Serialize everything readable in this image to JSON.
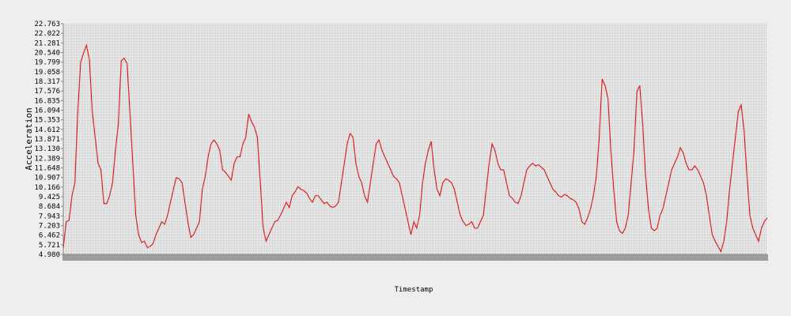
{
  "chart_data": {
    "type": "line",
    "title": "",
    "xlabel": "Timestamp",
    "ylabel": "Acceleration",
    "y_ticks": [
      "4.980",
      "5.721",
      "6.462",
      "7.203",
      "7.943",
      "8.684",
      "9.425",
      "10.166",
      "10.907",
      "11.648",
      "12.389",
      "13.130",
      "13.871",
      "14.612",
      "15.353",
      "16.094",
      "16.835",
      "17.576",
      "18.317",
      "19.058",
      "19.799",
      "20.540",
      "21.281",
      "22.022",
      "22.763"
    ],
    "ylim": [
      4.98,
      22.763
    ],
    "grid": true,
    "series": [
      {
        "name": "",
        "color": "#dd2222",
        "x_range": [
          0,
          1000
        ],
        "y": [
          5.5,
          7.5,
          7.6,
          9.5,
          10.5,
          16.0,
          19.8,
          20.5,
          21.1,
          20.0,
          16.0,
          14.0,
          12.0,
          11.5,
          8.9,
          8.9,
          9.5,
          10.5,
          13.0,
          15.0,
          19.9,
          20.1,
          19.7,
          16.0,
          12.0,
          8.0,
          6.5,
          5.9,
          6.0,
          5.5,
          5.6,
          5.8,
          6.5,
          7.0,
          7.5,
          7.3,
          8.0,
          9.0,
          10.0,
          10.9,
          10.8,
          10.5,
          9.0,
          7.5,
          6.3,
          6.5,
          7.0,
          7.5,
          10.0,
          11.0,
          12.5,
          13.5,
          13.8,
          13.5,
          13.0,
          11.5,
          11.3,
          11.0,
          10.7,
          12.0,
          12.5,
          12.5,
          13.5,
          14.0,
          15.8,
          15.2,
          14.8,
          14.0,
          10.5,
          7.0,
          6.0,
          6.5,
          7.0,
          7.5,
          7.6,
          8.0,
          8.5,
          9.0,
          8.6,
          9.5,
          9.8,
          10.2,
          10.0,
          9.9,
          9.7,
          9.3,
          9.0,
          9.5,
          9.5,
          9.2,
          8.9,
          9.0,
          8.7,
          8.6,
          8.7,
          9.0,
          10.5,
          12.0,
          13.5,
          14.3,
          14.0,
          12.0,
          11.0,
          10.5,
          9.5,
          9.0,
          10.5,
          12.0,
          13.5,
          13.8,
          13.0,
          12.5,
          12.0,
          11.5,
          11.0,
          10.8,
          10.5,
          9.5,
          8.5,
          7.5,
          6.5,
          7.5,
          7.0,
          8.0,
          10.5,
          12.0,
          13.0,
          13.7,
          11.5,
          10.0,
          9.5,
          10.5,
          10.8,
          10.7,
          10.5,
          10.0,
          9.0,
          8.0,
          7.5,
          7.2,
          7.3,
          7.5,
          7.0,
          7.0,
          7.5,
          8.0,
          10.0,
          12.0,
          13.5,
          13.0,
          12.0,
          11.5,
          11.5,
          10.5,
          9.5,
          9.3,
          9.0,
          8.9,
          9.5,
          10.5,
          11.5,
          11.8,
          12.0,
          11.8,
          11.9,
          11.7,
          11.5,
          11.0,
          10.5,
          10.0,
          9.8,
          9.5,
          9.4,
          9.6,
          9.5,
          9.3,
          9.2,
          9.0,
          8.5,
          7.5,
          7.3,
          7.8,
          8.5,
          9.5,
          11.0,
          14.0,
          18.5,
          18.0,
          17.0,
          13.0,
          10.0,
          7.5,
          6.8,
          6.6,
          7.0,
          8.0,
          10.5,
          13.0,
          17.5,
          18.0,
          15.0,
          11.0,
          8.5,
          7.0,
          6.8,
          7.0,
          8.0,
          8.5,
          9.5,
          10.5,
          11.5,
          12.0,
          12.5,
          13.2,
          12.8,
          12.0,
          11.5,
          11.5,
          11.8,
          11.5,
          11.0,
          10.5,
          9.5,
          8.0,
          6.5,
          6.0,
          5.6,
          5.2,
          6.0,
          7.5,
          10.0,
          12.0,
          14.0,
          16.0,
          16.5,
          14.5,
          11.0,
          8.0,
          7.0,
          6.5,
          6.0,
          7.0,
          7.5,
          7.8
        ]
      }
    ]
  }
}
